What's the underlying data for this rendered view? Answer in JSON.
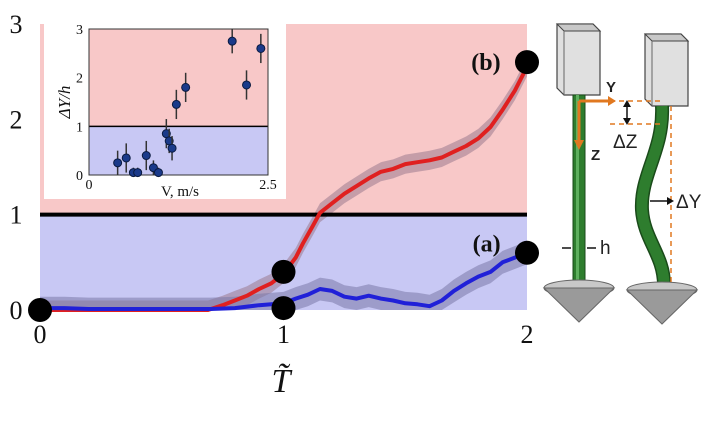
{
  "chart_data": [
    {
      "type": "line",
      "title": "",
      "xlabel": "T̃",
      "ylabel": "",
      "xlim": [
        0,
        2
      ],
      "ylim": [
        0,
        3
      ],
      "x_ticks": [
        "0",
        "1",
        "2"
      ],
      "y_ticks": [
        "0",
        "1",
        "2",
        "3"
      ],
      "threshold": 1,
      "regions": [
        {
          "name": "above",
          "range": [
            1,
            3
          ],
          "color": "#f8c8c8"
        },
        {
          "name": "below",
          "range": [
            0,
            1
          ],
          "color": "#c8c8f4"
        }
      ],
      "series": [
        {
          "name": "(b)",
          "color": "#e02020",
          "x": [
            0,
            0.1,
            0.2,
            0.3,
            0.4,
            0.5,
            0.6,
            0.69,
            0.75,
            0.8,
            0.85,
            0.9,
            0.95,
            1.0,
            1.05,
            1.08,
            1.12,
            1.15,
            1.2,
            1.25,
            1.3,
            1.35,
            1.4,
            1.45,
            1.5,
            1.55,
            1.6,
            1.65,
            1.7,
            1.75,
            1.8,
            1.85,
            1.9,
            1.95,
            2.0
          ],
          "y": [
            0,
            0,
            0,
            0,
            0,
            0,
            0,
            0,
            0.05,
            0.1,
            0.15,
            0.22,
            0.28,
            0.38,
            0.55,
            0.7,
            0.88,
            1.02,
            1.12,
            1.22,
            1.3,
            1.38,
            1.45,
            1.48,
            1.53,
            1.55,
            1.57,
            1.6,
            1.66,
            1.72,
            1.8,
            1.92,
            2.1,
            2.3,
            2.55
          ],
          "band": 0.1
        },
        {
          "name": "(a)",
          "color": "#2020d8",
          "x": [
            0,
            0.1,
            0.2,
            0.3,
            0.4,
            0.5,
            0.6,
            0.7,
            0.8,
            0.9,
            1.0,
            1.05,
            1.1,
            1.15,
            1.2,
            1.25,
            1.3,
            1.35,
            1.4,
            1.45,
            1.5,
            1.55,
            1.6,
            1.65,
            1.7,
            1.75,
            1.8,
            1.85,
            1.9,
            1.95,
            2.0
          ],
          "y": [
            0.02,
            0.02,
            0.01,
            0.01,
            0.01,
            0.01,
            0.01,
            0.01,
            0.02,
            0.05,
            0.07,
            0.12,
            0.16,
            0.22,
            0.2,
            0.14,
            0.12,
            0.15,
            0.12,
            0.1,
            0.07,
            0.06,
            0.04,
            0.1,
            0.2,
            0.28,
            0.35,
            0.4,
            0.5,
            0.55,
            0.6
          ],
          "band": 0.12
        }
      ],
      "markers": [
        {
          "x": 0,
          "y": 0
        },
        {
          "x": 1,
          "y": 0.02
        },
        {
          "x": 1,
          "y": 0.4
        },
        {
          "x": 2,
          "y": 0.6
        },
        {
          "x": 2,
          "y": 2.6
        }
      ],
      "annotations": [
        {
          "text": "(b)",
          "x": 1.9,
          "y": 2.6
        },
        {
          "text": "(a)",
          "x": 1.9,
          "y": 0.7
        }
      ]
    },
    {
      "type": "scatter",
      "title": "",
      "xlabel": "V, m/s",
      "ylabel": "ΔY/h",
      "xlim": [
        0,
        2.5
      ],
      "ylim": [
        0,
        3
      ],
      "x_ticks": [
        "0",
        "2.5"
      ],
      "y_ticks": [
        "0",
        "1",
        "2",
        "3"
      ],
      "threshold": 1,
      "points": [
        {
          "x": 0.4,
          "y": 0.25,
          "err": 0.25
        },
        {
          "x": 0.52,
          "y": 0.35,
          "err": 0.3
        },
        {
          "x": 0.62,
          "y": 0.05,
          "err": 0.1
        },
        {
          "x": 0.68,
          "y": 0.05,
          "err": 0.1
        },
        {
          "x": 0.8,
          "y": 0.4,
          "err": 0.3
        },
        {
          "x": 0.9,
          "y": 0.15,
          "err": 0.15
        },
        {
          "x": 0.97,
          "y": 0.05,
          "err": 0.1
        },
        {
          "x": 1.08,
          "y": 0.85,
          "err": 0.3
        },
        {
          "x": 1.12,
          "y": 0.7,
          "err": 0.25
        },
        {
          "x": 1.16,
          "y": 0.55,
          "err": 0.25
        },
        {
          "x": 1.22,
          "y": 1.45,
          "err": 0.3
        },
        {
          "x": 1.35,
          "y": 1.8,
          "err": 0.3
        },
        {
          "x": 2.0,
          "y": 2.75,
          "err": 0.25
        },
        {
          "x": 2.2,
          "y": 1.85,
          "err": 0.3
        },
        {
          "x": 2.4,
          "y": 2.6,
          "err": 0.3
        }
      ]
    }
  ],
  "diagram": {
    "labels": {
      "y_axis": "Y",
      "z_axis": "Z",
      "delta_z": "ΔZ",
      "delta_y": "ΔY",
      "thickness": "h"
    }
  }
}
